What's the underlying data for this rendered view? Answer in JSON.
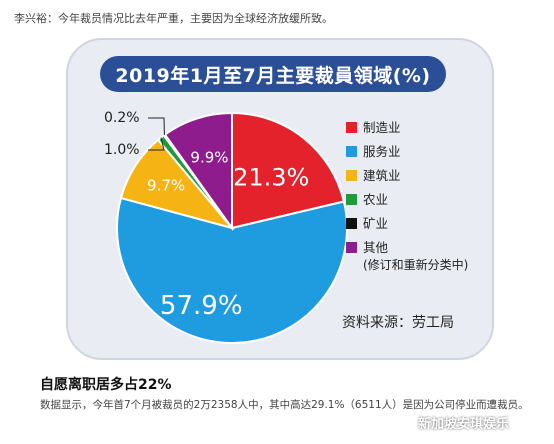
{
  "caption_top": "李兴裕：今年裁员情况比去年严重，主要因为全球经济放缓所致。",
  "chart_data": {
    "type": "pie",
    "title": "2019年1月至7月主要裁員領域(%)",
    "legend_position": "right",
    "slices": [
      {
        "name": "制造业",
        "value": 21.3,
        "label": "21.3%",
        "color": "#e3222c"
      },
      {
        "name": "服务业",
        "value": 57.9,
        "label": "57.9%",
        "color": "#1f9be0"
      },
      {
        "name": "建筑业",
        "value": 9.7,
        "label": "9.7%",
        "color": "#f5b414"
      },
      {
        "name": "农业",
        "value": 1.0,
        "label": "1.0%",
        "color": "#1e9a3c"
      },
      {
        "name": "矿业",
        "value": 0.2,
        "label": "0.2%",
        "color": "#111111"
      },
      {
        "name": "其他",
        "value": 9.9,
        "label": "9.9%",
        "color": "#8e1c8c"
      }
    ],
    "other_note": "(修订和重新分类中)",
    "source": "资料来源：劳工局"
  },
  "article": {
    "heading": "自愿离职居多占22%",
    "body": "数据显示，今年首7个月被裁员的2万2358人中，其中高达29.1%（6511人）是因为公司停业而遭裁员。"
  },
  "watermark": "新加坡安琪娱乐"
}
